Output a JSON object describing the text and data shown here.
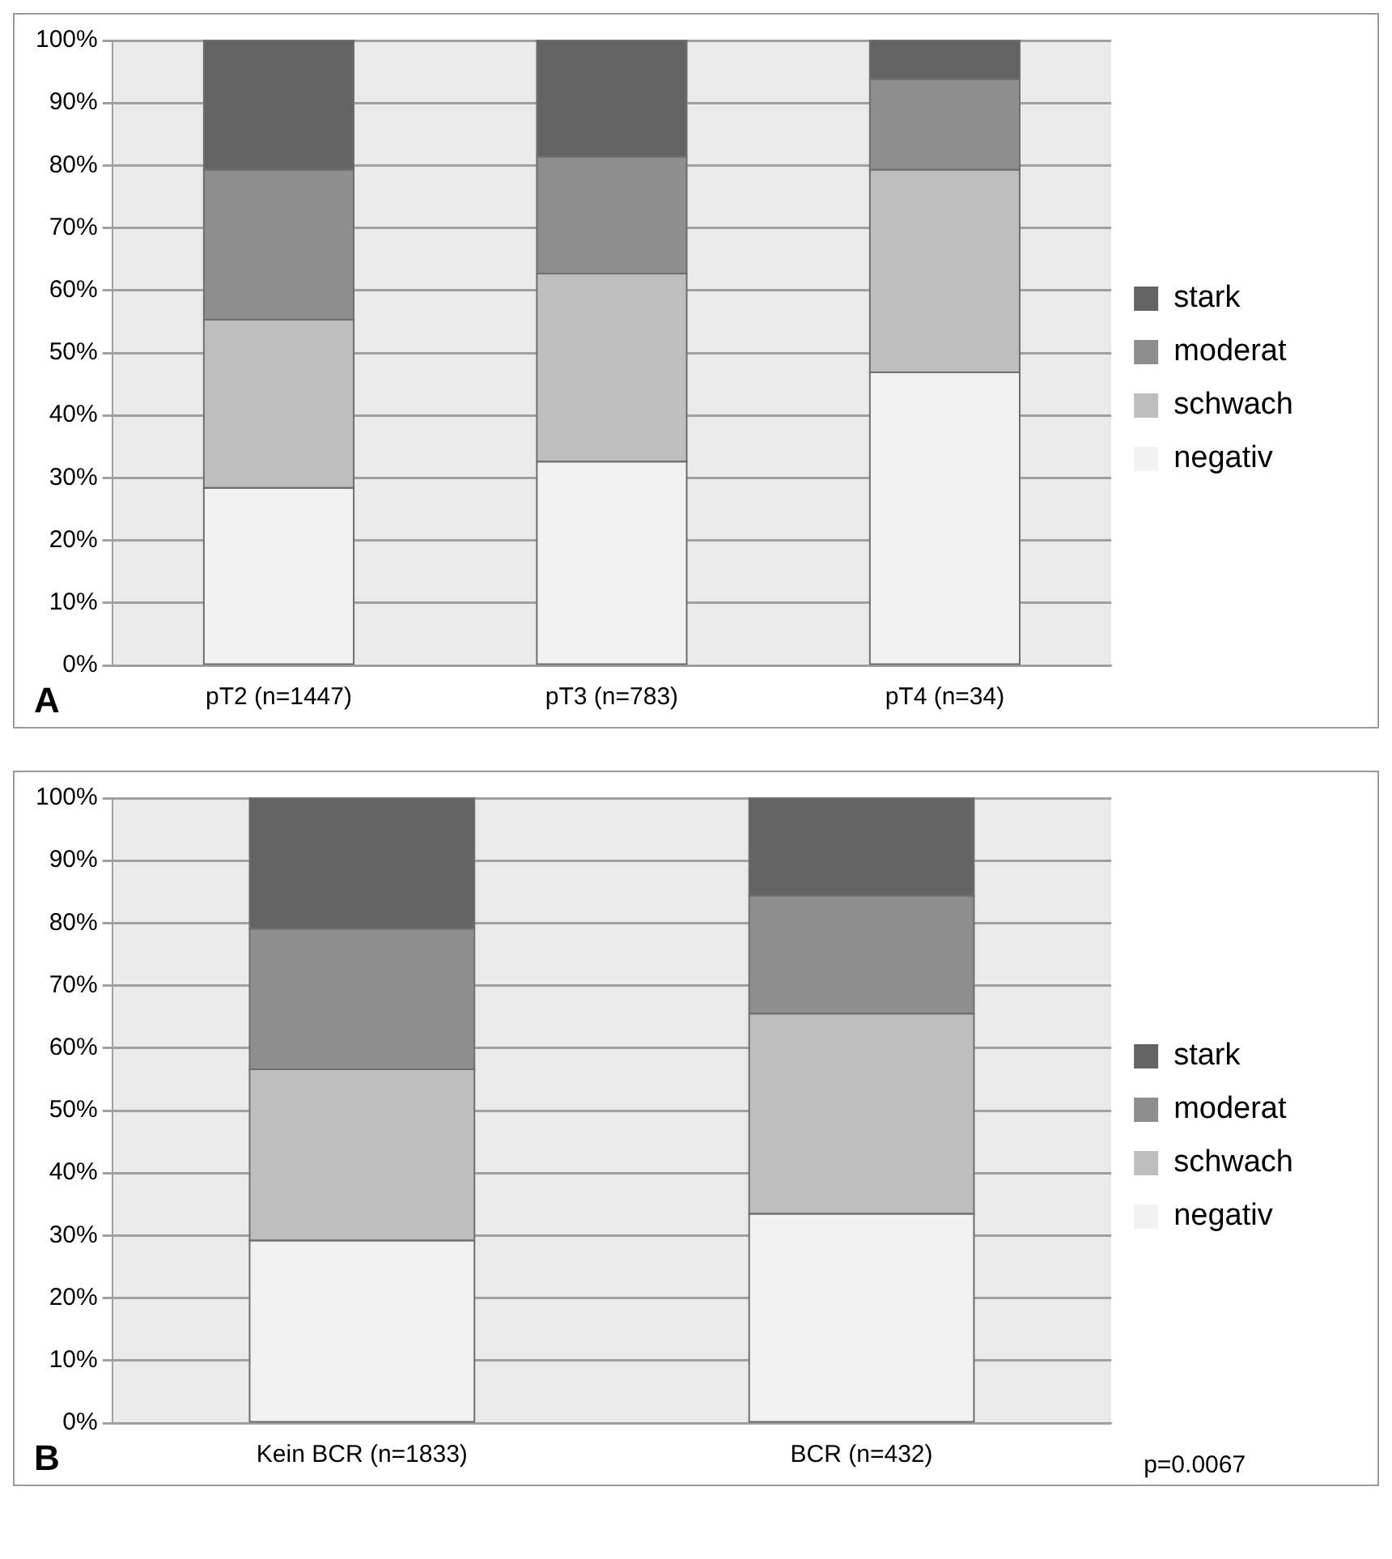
{
  "chart_data": [
    {
      "type": "bar",
      "stacked": true,
      "categories": [
        "pT2 (n=1447)",
        "pT3 (n=783)",
        "pT4 (n=34)"
      ],
      "series": [
        {
          "name": "negativ",
          "color": "#f2f2f2",
          "values": [
            28.4,
            32.6,
            46.9
          ]
        },
        {
          "name": "schwach",
          "color": "#bebebe",
          "values": [
            26.9,
            30.1,
            32.4
          ]
        },
        {
          "name": "moderat",
          "color": "#8e8e8e",
          "values": [
            24.0,
            18.7,
            14.5
          ]
        },
        {
          "name": "stark",
          "color": "#636363",
          "values": [
            20.7,
            18.6,
            6.2
          ]
        }
      ],
      "ylim": [
        0,
        100
      ],
      "yticks": [
        {
          "value": 0,
          "label": "0%"
        },
        {
          "value": 10,
          "label": "10%"
        },
        {
          "value": 20,
          "label": "20%"
        },
        {
          "value": 30,
          "label": "30%"
        },
        {
          "value": 40,
          "label": "40%"
        },
        {
          "value": 50,
          "label": "50%"
        },
        {
          "value": 60,
          "label": "60%"
        },
        {
          "value": 70,
          "label": "70%"
        },
        {
          "value": 80,
          "label": "80%"
        },
        {
          "value": 90,
          "label": "90%"
        },
        {
          "value": 100,
          "label": "100%"
        }
      ],
      "grid": "y",
      "legend": "right",
      "annotations": [
        "A"
      ]
    },
    {
      "type": "bar",
      "stacked": true,
      "categories": [
        "Kein BCR (n=1833)",
        "BCR (n=432)"
      ],
      "series": [
        {
          "name": "negativ",
          "color": "#f2f2f2",
          "values": [
            29.2,
            33.5
          ]
        },
        {
          "name": "schwach",
          "color": "#bebebe",
          "values": [
            27.4,
            32.0
          ]
        },
        {
          "name": "moderat",
          "color": "#8e8e8e",
          "values": [
            22.5,
            18.9
          ]
        },
        {
          "name": "stark",
          "color": "#636363",
          "values": [
            20.9,
            15.6
          ]
        }
      ],
      "ylim": [
        0,
        100
      ],
      "yticks": [
        {
          "value": 0,
          "label": "0%"
        },
        {
          "value": 10,
          "label": "10%"
        },
        {
          "value": 20,
          "label": "20%"
        },
        {
          "value": 30,
          "label": "30%"
        },
        {
          "value": 40,
          "label": "40%"
        },
        {
          "value": 50,
          "label": "50%"
        },
        {
          "value": 60,
          "label": "60%"
        },
        {
          "value": 70,
          "label": "70%"
        },
        {
          "value": 80,
          "label": "80%"
        },
        {
          "value": 90,
          "label": "90%"
        },
        {
          "value": 100,
          "label": "100%"
        }
      ],
      "grid": "y",
      "legend": "right",
      "annotations": [
        "B",
        "p=0.0067"
      ]
    }
  ]
}
